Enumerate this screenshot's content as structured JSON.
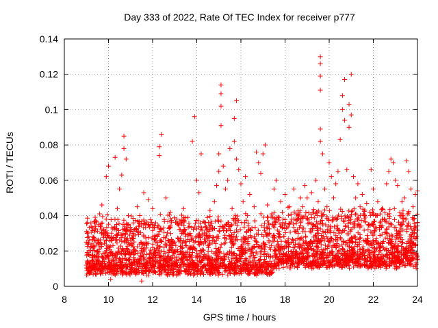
{
  "chart_data": {
    "type": "scatter",
    "title": "Day 333 of 2022, Rate Of TEC Index for receiver p777",
    "xlabel": "GPS time / hours",
    "ylabel": "ROTI / TECUs",
    "xlim": [
      8,
      24
    ],
    "ylim": [
      0,
      0.14
    ],
    "xticks": [
      8,
      10,
      12,
      14,
      16,
      18,
      20,
      22,
      24
    ],
    "yticks": [
      0,
      0.02,
      0.04,
      0.06,
      0.08,
      0.1,
      0.12,
      0.14
    ],
    "xtick_labels": [
      "8",
      "10",
      "12",
      "14",
      "16",
      "18",
      "20",
      "22",
      "24"
    ],
    "ytick_labels": [
      "0",
      "0.02",
      "0.04",
      "0.06",
      "0.08",
      "0.1",
      "0.12",
      "0.14"
    ],
    "grid": true,
    "marker": "+",
    "color": "#ff0000",
    "x_data_range": [
      9.0,
      24.0
    ],
    "series": [
      {
        "points": [
          [
            9.0,
            0.012
          ],
          [
            9.0,
            0.025
          ],
          [
            9.0,
            0.031
          ],
          [
            9.1,
            0.018
          ],
          [
            9.1,
            0.009
          ],
          [
            9.2,
            0.022
          ],
          [
            9.3,
            0.028
          ],
          [
            9.3,
            0.015
          ],
          [
            9.4,
            0.034
          ],
          [
            9.5,
            0.02
          ],
          [
            9.6,
            0.041
          ],
          [
            9.6,
            0.012
          ],
          [
            9.7,
            0.046
          ],
          [
            9.8,
            0.03
          ],
          [
            9.9,
            0.038
          ],
          [
            9.9,
            0.062
          ],
          [
            10.0,
            0.068
          ],
          [
            10.0,
            0.015
          ],
          [
            10.1,
            0.01
          ],
          [
            10.1,
            0.004
          ],
          [
            10.2,
            0.027
          ],
          [
            10.3,
            0.073
          ],
          [
            10.4,
            0.044
          ],
          [
            10.5,
            0.055
          ],
          [
            10.6,
            0.063
          ],
          [
            10.6,
            0.02
          ],
          [
            10.7,
            0.078
          ],
          [
            10.7,
            0.085
          ],
          [
            10.8,
            0.072
          ],
          [
            10.9,
            0.04
          ],
          [
            11.0,
            0.018
          ],
          [
            11.1,
            0.03
          ],
          [
            11.2,
            0.012
          ],
          [
            11.3,
            0.045
          ],
          [
            11.4,
            0.008
          ],
          [
            11.5,
            0.003
          ],
          [
            11.6,
            0.053
          ],
          [
            11.7,
            0.025
          ],
          [
            11.8,
            0.049
          ],
          [
            11.9,
            0.035
          ],
          [
            12.0,
            0.044
          ],
          [
            12.1,
            0.02
          ],
          [
            12.2,
            0.029
          ],
          [
            12.3,
            0.074
          ],
          [
            12.3,
            0.079
          ],
          [
            12.4,
            0.086
          ],
          [
            12.5,
            0.033
          ],
          [
            12.6,
            0.05
          ],
          [
            12.8,
            0.042
          ],
          [
            12.9,
            0.013
          ],
          [
            13.0,
            0.025
          ],
          [
            13.1,
            0.038
          ],
          [
            13.2,
            0.018
          ],
          [
            13.4,
            0.044
          ],
          [
            13.5,
            0.016
          ],
          [
            13.6,
            0.039
          ],
          [
            13.7,
            0.03
          ],
          [
            13.8,
            0.082
          ],
          [
            13.9,
            0.096
          ],
          [
            14.0,
            0.06
          ],
          [
            14.1,
            0.053
          ],
          [
            14.2,
            0.075
          ],
          [
            14.3,
            0.024
          ],
          [
            14.4,
            0.036
          ],
          [
            14.5,
            0.015
          ],
          [
            14.6,
            0.043
          ],
          [
            14.7,
            0.026
          ],
          [
            14.8,
            0.048
          ],
          [
            14.9,
            0.057
          ],
          [
            15.0,
            0.065
          ],
          [
            15.0,
            0.075
          ],
          [
            15.1,
            0.091
          ],
          [
            15.1,
            0.102
          ],
          [
            15.1,
            0.109
          ],
          [
            15.1,
            0.114
          ],
          [
            15.2,
            0.068
          ],
          [
            15.3,
            0.055
          ],
          [
            15.4,
            0.06
          ],
          [
            15.5,
            0.078
          ],
          [
            15.6,
            0.044
          ],
          [
            15.7,
            0.095
          ],
          [
            15.7,
            0.082
          ],
          [
            15.8,
            0.105
          ],
          [
            15.8,
            0.072
          ],
          [
            15.9,
            0.066
          ],
          [
            16.0,
            0.058
          ],
          [
            16.1,
            0.048
          ],
          [
            16.2,
            0.062
          ],
          [
            16.3,
            0.04
          ],
          [
            16.4,
            0.052
          ],
          [
            16.5,
            0.033
          ],
          [
            16.6,
            0.045
          ],
          [
            16.7,
            0.076
          ],
          [
            16.8,
            0.07
          ],
          [
            16.9,
            0.064
          ],
          [
            17.0,
            0.075
          ],
          [
            17.1,
            0.08
          ],
          [
            17.2,
            0.046
          ],
          [
            17.3,
            0.03
          ],
          [
            17.4,
            0.041
          ],
          [
            17.5,
            0.055
          ],
          [
            17.6,
            0.06
          ],
          [
            17.7,
            0.028
          ],
          [
            17.8,
            0.048
          ],
          [
            17.9,
            0.036
          ],
          [
            18.0,
            0.052
          ],
          [
            18.1,
            0.025
          ],
          [
            18.2,
            0.045
          ],
          [
            18.3,
            0.038
          ],
          [
            18.4,
            0.055
          ],
          [
            18.5,
            0.041
          ],
          [
            18.6,
            0.03
          ],
          [
            18.7,
            0.05
          ],
          [
            18.8,
            0.045
          ],
          [
            18.9,
            0.057
          ],
          [
            19.0,
            0.05
          ],
          [
            19.1,
            0.036
          ],
          [
            19.2,
            0.053
          ],
          [
            19.3,
            0.042
          ],
          [
            19.4,
            0.06
          ],
          [
            19.5,
            0.048
          ],
          [
            19.6,
            0.082
          ],
          [
            19.6,
            0.089
          ],
          [
            19.6,
            0.111
          ],
          [
            19.6,
            0.119
          ],
          [
            19.6,
            0.126
          ],
          [
            19.6,
            0.13
          ],
          [
            19.7,
            0.075
          ],
          [
            19.8,
            0.055
          ],
          [
            19.9,
            0.045
          ],
          [
            20.0,
            0.07
          ],
          [
            20.1,
            0.062
          ],
          [
            20.2,
            0.05
          ],
          [
            20.3,
            0.058
          ],
          [
            20.4,
            0.065
          ],
          [
            20.5,
            0.083
          ],
          [
            20.6,
            0.1
          ],
          [
            20.6,
            0.108
          ],
          [
            20.7,
            0.117
          ],
          [
            20.7,
            0.094
          ],
          [
            20.8,
            0.066
          ],
          [
            20.9,
            0.09
          ],
          [
            20.9,
            0.103
          ],
          [
            21.0,
            0.097
          ],
          [
            21.0,
            0.12
          ],
          [
            21.1,
            0.062
          ],
          [
            21.2,
            0.05
          ],
          [
            21.3,
            0.058
          ],
          [
            21.4,
            0.045
          ],
          [
            21.5,
            0.052
          ],
          [
            21.6,
            0.04
          ],
          [
            21.7,
            0.047
          ],
          [
            21.8,
            0.035
          ],
          [
            21.9,
            0.066
          ],
          [
            22.0,
            0.055
          ],
          [
            22.1,
            0.04
          ],
          [
            22.2,
            0.048
          ],
          [
            22.3,
            0.036
          ],
          [
            22.4,
            0.044
          ],
          [
            22.5,
            0.038
          ],
          [
            22.6,
            0.058
          ],
          [
            22.7,
            0.065
          ],
          [
            22.8,
            0.072
          ],
          [
            22.9,
            0.07
          ],
          [
            23.0,
            0.06
          ],
          [
            23.1,
            0.057
          ],
          [
            23.2,
            0.04
          ],
          [
            23.3,
            0.048
          ],
          [
            23.4,
            0.05
          ],
          [
            23.5,
            0.071
          ],
          [
            23.6,
            0.065
          ],
          [
            23.7,
            0.055
          ],
          [
            23.8,
            0.045
          ],
          [
            23.9,
            0.052
          ],
          [
            24.0,
            0.054
          ],
          [
            24.0,
            0.036
          ],
          [
            24.0,
            0.015
          ]
        ]
      }
    ]
  }
}
